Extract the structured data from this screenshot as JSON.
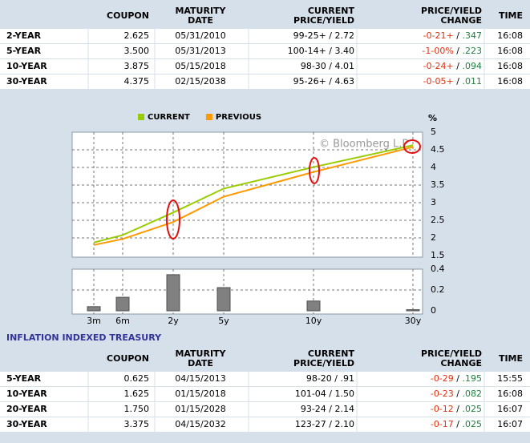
{
  "treasury_table": {
    "header": {
      "coupon": "COUPON",
      "maturity": [
        "MATURITY",
        "DATE"
      ],
      "price_yield": [
        "CURRENT",
        "PRICE/YIELD"
      ],
      "change": [
        "PRICE/YIELD",
        "CHANGE"
      ],
      "time": "TIME"
    },
    "rows": [
      {
        "name": "2-YEAR",
        "coupon": "2.625",
        "maturity": "05/31/2010",
        "price_yield": "99-25+ / 2.72",
        "change": [
          "-0-21+",
          "/",
          ".347"
        ],
        "time": "16:08"
      },
      {
        "name": "5-YEAR",
        "coupon": "3.500",
        "maturity": "05/31/2013",
        "price_yield": "100-14+ / 3.40",
        "change": [
          "-1-00%",
          "/",
          ".223"
        ],
        "time": "16:08"
      },
      {
        "name": "10-YEAR",
        "coupon": "3.875",
        "maturity": "05/15/2018",
        "price_yield": "98-30 / 4.01",
        "change": [
          "-0-24+",
          "/",
          ".094"
        ],
        "time": "16:08"
      },
      {
        "name": "30-YEAR",
        "coupon": "4.375",
        "maturity": "02/15/2038",
        "price_yield": "95-26+ / 4.63",
        "change": [
          "-0-05+",
          "/",
          ".011"
        ],
        "time": "16:08"
      }
    ]
  },
  "chart_data": [
    {
      "type": "line",
      "legend": "top",
      "series": [
        {
          "name": "CURRENT",
          "color": "#99cc00",
          "values": [
            1.87,
            2.08,
            2.72,
            3.4,
            4.01,
            4.63
          ]
        },
        {
          "name": "PREVIOUS",
          "color": "#ff9900",
          "values": [
            1.8,
            1.97,
            2.45,
            3.17,
            3.87,
            4.58
          ]
        }
      ],
      "ylim": [
        1.5,
        5
      ],
      "yticks": [
        1.5,
        2,
        2.5,
        3,
        3.5,
        4,
        4.5,
        5
      ],
      "y_axis_label": "%",
      "annotation": "© Bloomberg L.P",
      "grid": true
    },
    {
      "type": "bar",
      "categories": [
        "3m",
        "6m",
        "2y",
        "5y",
        "10y",
        "30y"
      ],
      "values": [
        0.04,
        0.13,
        0.347,
        0.223,
        0.094,
        0.011
      ],
      "color": "#808080",
      "ylim": [
        0,
        0.4
      ],
      "yticks": [
        0,
        0.2,
        0.4
      ],
      "grid": true
    }
  ],
  "inflation_table": {
    "title": "INFLATION INDEXED TREASURY",
    "header": {
      "coupon": "COUPON",
      "maturity": [
        "MATURITY",
        "DATE"
      ],
      "price_yield": [
        "CURRENT",
        "PRICE/YIELD"
      ],
      "change": [
        "PRICE/YIELD",
        "CHANGE"
      ],
      "time": "TIME"
    },
    "rows": [
      {
        "name": "5-YEAR",
        "coupon": "0.625",
        "maturity": "04/15/2013",
        "price_yield": "98-20 / .91",
        "change": [
          "-0-29",
          "/",
          ".195"
        ],
        "time": "15:55"
      },
      {
        "name": "10-YEAR",
        "coupon": "1.625",
        "maturity": "01/15/2018",
        "price_yield": "101-04 / 1.50",
        "change": [
          "-0-23",
          "/",
          ".082"
        ],
        "time": "16:08"
      },
      {
        "name": "20-YEAR",
        "coupon": "1.750",
        "maturity": "01/15/2028",
        "price_yield": "93-24 / 2.14",
        "change": [
          "-0-12",
          "/",
          ".025"
        ],
        "time": "16:07"
      },
      {
        "name": "30-YEAR",
        "coupon": "3.375",
        "maturity": "04/15/2032",
        "price_yield": "123-27 / 2.10",
        "change": [
          "-0-17",
          "/",
          ".025"
        ],
        "time": "16:07"
      }
    ]
  }
}
